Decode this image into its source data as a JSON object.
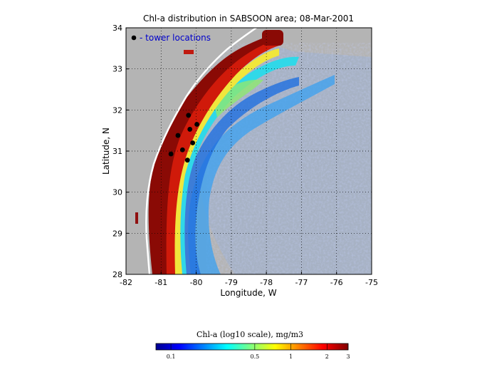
{
  "map": {
    "title": "Chl-a distribution in SABSOON area; 08-Mar-2001",
    "xlabel": "Longitude, W",
    "ylabel": "Latitude, N",
    "legend_label": "- tower locations",
    "x_ticks": [
      "-82",
      "-81",
      "-80",
      "-79",
      "-78",
      "-77",
      "-76",
      "-75"
    ],
    "y_ticks": [
      "28",
      "29",
      "30",
      "31",
      "32",
      "33",
      "34"
    ],
    "land_color": "#b4b4b4",
    "tower_color": "#000000",
    "legend_color": "#0000cc"
  },
  "colorbar": {
    "title": "Chl-a (log10 scale), mg/m3",
    "ticks": [
      "0.1",
      "0.5",
      "1",
      "2",
      "3"
    ],
    "colormap": "jet"
  },
  "towers": [
    {
      "lon": -80.22,
      "lat": 31.87
    },
    {
      "lon": -79.98,
      "lat": 31.65
    },
    {
      "lon": -80.18,
      "lat": 31.53
    },
    {
      "lon": -80.52,
      "lat": 31.38
    },
    {
      "lon": -80.1,
      "lat": 31.2
    },
    {
      "lon": -80.39,
      "lat": 31.03
    },
    {
      "lon": -80.72,
      "lat": 30.93
    },
    {
      "lon": -80.25,
      "lat": 30.78
    }
  ]
}
